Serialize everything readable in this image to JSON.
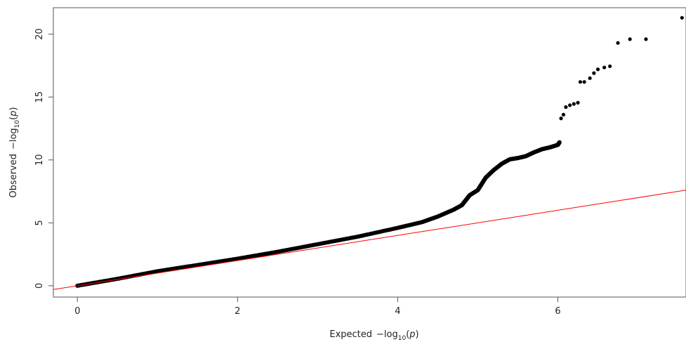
{
  "chart_data": {
    "type": "scatter",
    "title": "",
    "xlabel": {
      "prefix": "Expected",
      "minus": "−log",
      "sub": "10",
      "open": "(",
      "var": "p",
      "close": ")"
    },
    "ylabel": {
      "prefix": "Observed",
      "minus": "−log",
      "sub": "10",
      "open": "(",
      "var": "p",
      "close": ")"
    },
    "xlim": [
      -0.3,
      7.6
    ],
    "ylim": [
      -0.9,
      22.1
    ],
    "x_ticks": [
      0,
      2,
      4,
      6
    ],
    "x_tick_labels": [
      "0",
      "2",
      "4",
      "6"
    ],
    "y_ticks": [
      0,
      5,
      10,
      15,
      20
    ],
    "y_tick_labels": [
      "0",
      "5",
      "10",
      "15",
      "20"
    ],
    "grid": false,
    "series": [
      {
        "color": "#000000",
        "curve": [
          [
            0.0,
            0.0
          ],
          [
            0.5,
            0.55
          ],
          [
            1.0,
            1.15
          ],
          [
            1.5,
            1.65
          ],
          [
            2.0,
            2.15
          ],
          [
            2.5,
            2.7
          ],
          [
            3.0,
            3.3
          ],
          [
            3.5,
            3.9
          ],
          [
            4.0,
            4.6
          ],
          [
            4.3,
            5.05
          ],
          [
            4.5,
            5.5
          ],
          [
            4.7,
            6.05
          ],
          [
            4.8,
            6.4
          ],
          [
            4.85,
            6.8
          ],
          [
            4.9,
            7.2
          ],
          [
            5.0,
            7.6
          ],
          [
            5.05,
            8.1
          ],
          [
            5.1,
            8.6
          ],
          [
            5.2,
            9.2
          ],
          [
            5.3,
            9.7
          ],
          [
            5.4,
            10.05
          ],
          [
            5.5,
            10.15
          ],
          [
            5.6,
            10.3
          ],
          [
            5.7,
            10.6
          ],
          [
            5.8,
            10.85
          ],
          [
            5.9,
            11.0
          ],
          [
            6.0,
            11.2
          ],
          [
            6.02,
            11.4
          ]
        ],
        "points": [
          [
            6.04,
            13.3
          ],
          [
            6.07,
            13.6
          ],
          [
            6.1,
            14.2
          ],
          [
            6.15,
            14.35
          ],
          [
            6.2,
            14.45
          ],
          [
            6.25,
            14.55
          ],
          [
            6.28,
            16.2
          ],
          [
            6.33,
            16.2
          ],
          [
            6.4,
            16.5
          ],
          [
            6.45,
            16.9
          ],
          [
            6.5,
            17.2
          ],
          [
            6.58,
            17.35
          ],
          [
            6.65,
            17.45
          ],
          [
            6.75,
            19.3
          ],
          [
            6.9,
            19.6
          ],
          [
            7.1,
            19.6
          ],
          [
            7.55,
            21.3
          ]
        ]
      },
      {
        "color": "#ff0000",
        "line": [
          [
            -0.3,
            -0.3
          ],
          [
            7.6,
            7.6
          ]
        ]
      }
    ]
  }
}
